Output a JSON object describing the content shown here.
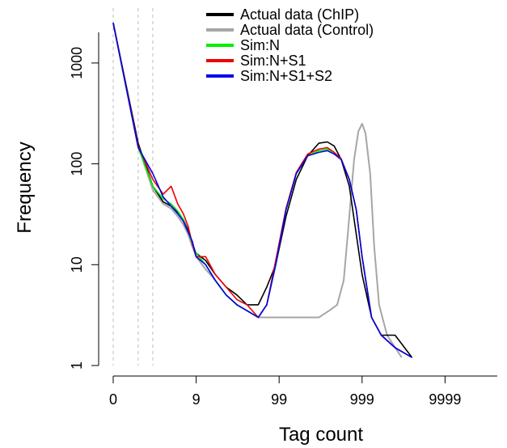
{
  "chart_data": {
    "type": "line",
    "xlabel": "Tag count",
    "ylabel": "Frequency",
    "x_scale": "log(x+1)",
    "y_scale": "log",
    "x_ticks": [
      "0",
      "9",
      "99",
      "999",
      "9999"
    ],
    "x_tick_values": [
      0,
      9,
      99,
      999,
      9999
    ],
    "y_ticks": [
      "1",
      "10",
      "100",
      "1000"
    ],
    "y_tick_values": [
      1,
      10,
      100,
      1000
    ],
    "xlim": [
      0,
      40000
    ],
    "ylim": [
      1,
      3000
    ],
    "vlines": [
      0,
      1,
      2
    ],
    "legend": {
      "position": "top-right"
    },
    "series": [
      {
        "name": "Actual data (ChIP)",
        "color": "#000000",
        "points": [
          [
            0,
            2500
          ],
          [
            1,
            160
          ],
          [
            2,
            60
          ],
          [
            3,
            42
          ],
          [
            4,
            38
          ],
          [
            5,
            33
          ],
          [
            6,
            28
          ],
          [
            7,
            22
          ],
          [
            8,
            16
          ],
          [
            9,
            13
          ],
          [
            12,
            11
          ],
          [
            16,
            8
          ],
          [
            22,
            6
          ],
          [
            30,
            5
          ],
          [
            40,
            4
          ],
          [
            55,
            4
          ],
          [
            70,
            6
          ],
          [
            90,
            10
          ],
          [
            120,
            30
          ],
          [
            160,
            70
          ],
          [
            220,
            120
          ],
          [
            300,
            160
          ],
          [
            380,
            165
          ],
          [
            460,
            150
          ],
          [
            560,
            110
          ],
          [
            700,
            60
          ],
          [
            850,
            20
          ],
          [
            1000,
            8
          ],
          [
            1300,
            3
          ],
          [
            1700,
            2
          ],
          [
            2500,
            2
          ],
          [
            4000,
            1.2
          ]
        ]
      },
      {
        "name": "Actual data (Control)",
        "color": "#a6a6a6",
        "points": [
          [
            0,
            2500
          ],
          [
            1,
            150
          ],
          [
            2,
            55
          ],
          [
            3,
            40
          ],
          [
            4,
            36
          ],
          [
            5,
            30
          ],
          [
            6,
            25
          ],
          [
            7,
            20
          ],
          [
            8,
            15
          ],
          [
            9,
            12
          ],
          [
            12,
            9
          ],
          [
            16,
            7
          ],
          [
            22,
            5
          ],
          [
            30,
            4
          ],
          [
            40,
            3.5
          ],
          [
            55,
            3
          ],
          [
            80,
            3
          ],
          [
            120,
            3
          ],
          [
            200,
            3
          ],
          [
            300,
            3
          ],
          [
            400,
            3.5
          ],
          [
            500,
            4
          ],
          [
            600,
            7
          ],
          [
            700,
            30
          ],
          [
            800,
            110
          ],
          [
            900,
            210
          ],
          [
            1000,
            250
          ],
          [
            1100,
            200
          ],
          [
            1250,
            80
          ],
          [
            1400,
            15
          ],
          [
            1600,
            4
          ],
          [
            2000,
            2
          ],
          [
            3000,
            1.2
          ]
        ]
      },
      {
        "name": "Sim:N",
        "color": "#00ee00",
        "points": [
          [
            0,
            2500
          ],
          [
            1,
            145
          ],
          [
            2,
            60
          ],
          [
            3,
            45
          ],
          [
            4,
            40
          ],
          [
            5,
            34
          ],
          [
            6,
            28
          ],
          [
            7,
            21
          ],
          [
            8,
            16
          ],
          [
            9,
            13
          ],
          [
            12,
            10
          ],
          [
            16,
            7
          ],
          [
            22,
            5
          ],
          [
            30,
            4
          ],
          [
            40,
            3.5
          ],
          [
            55,
            3
          ],
          [
            70,
            4
          ],
          [
            90,
            10
          ],
          [
            120,
            35
          ],
          [
            160,
            80
          ],
          [
            220,
            120
          ],
          [
            300,
            135
          ],
          [
            380,
            140
          ],
          [
            460,
            130
          ],
          [
            560,
            110
          ],
          [
            700,
            70
          ],
          [
            850,
            35
          ],
          [
            1000,
            12
          ],
          [
            1300,
            3
          ],
          [
            1700,
            2
          ],
          [
            2500,
            1.5
          ],
          [
            4000,
            1.2
          ]
        ]
      },
      {
        "name": "Sim:N+S1",
        "color": "#ee0000",
        "points": [
          [
            0,
            2500
          ],
          [
            1,
            150
          ],
          [
            2,
            70
          ],
          [
            3,
            50
          ],
          [
            4,
            60
          ],
          [
            5,
            40
          ],
          [
            6,
            32
          ],
          [
            7,
            24
          ],
          [
            8,
            16
          ],
          [
            9,
            12
          ],
          [
            12,
            12
          ],
          [
            16,
            8
          ],
          [
            22,
            6
          ],
          [
            30,
            4.5
          ],
          [
            40,
            4
          ],
          [
            55,
            3
          ],
          [
            70,
            4
          ],
          [
            90,
            11
          ],
          [
            120,
            36
          ],
          [
            160,
            82
          ],
          [
            220,
            125
          ],
          [
            300,
            140
          ],
          [
            380,
            145
          ],
          [
            460,
            130
          ],
          [
            560,
            112
          ],
          [
            700,
            70
          ],
          [
            850,
            35
          ],
          [
            1000,
            12
          ],
          [
            1300,
            3
          ],
          [
            1700,
            2
          ],
          [
            2500,
            1.5
          ],
          [
            4000,
            1.2
          ]
        ]
      },
      {
        "name": "Sim:N+S1+S2",
        "color": "#0000ee",
        "points": [
          [
            0,
            2500
          ],
          [
            1,
            145
          ],
          [
            2,
            80
          ],
          [
            3,
            47
          ],
          [
            4,
            38
          ],
          [
            5,
            32
          ],
          [
            6,
            27
          ],
          [
            7,
            21
          ],
          [
            8,
            17
          ],
          [
            9,
            12
          ],
          [
            12,
            10
          ],
          [
            16,
            7
          ],
          [
            22,
            5
          ],
          [
            30,
            4
          ],
          [
            40,
            3.5
          ],
          [
            55,
            3
          ],
          [
            70,
            4
          ],
          [
            90,
            10
          ],
          [
            120,
            35
          ],
          [
            160,
            80
          ],
          [
            220,
            120
          ],
          [
            300,
            130
          ],
          [
            380,
            135
          ],
          [
            460,
            125
          ],
          [
            560,
            110
          ],
          [
            700,
            70
          ],
          [
            850,
            35
          ],
          [
            1000,
            12
          ],
          [
            1300,
            3
          ],
          [
            1700,
            2
          ],
          [
            2500,
            1.5
          ],
          [
            4000,
            1.2
          ]
        ]
      }
    ]
  }
}
